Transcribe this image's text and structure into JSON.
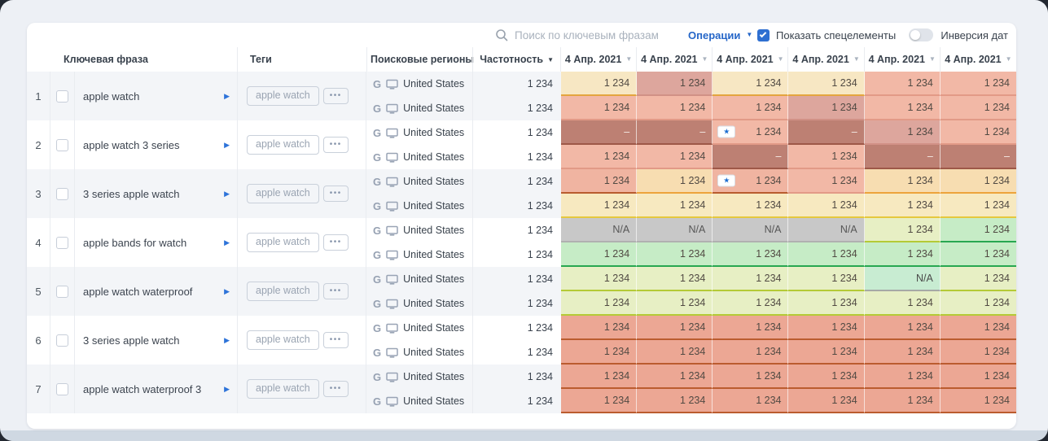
{
  "toolbar": {
    "search_placeholder": "Поиск по ключевым фразам",
    "operations": "Операции",
    "show_special": "Показать спецелементы",
    "show_special_checked": true,
    "invert_dates": "Инверсия дат",
    "invert_dates_on": false
  },
  "icons": {
    "caret_down": "▼",
    "sort_desc": "▼",
    "arrow_right": "▶",
    "star": "★",
    "dots": "•••",
    "google": "G"
  },
  "colors": {
    "accent_blue": "#2566c8",
    "row_stripe": "#f3f5f8",
    "palette": {
      "y": {
        "bg": "#f7e7c3",
        "border": "#e4a53e",
        "text": "#514a43"
      },
      "o": {
        "bg": "#f7ddb1",
        "border": "#eda43c",
        "text": "#514a43"
      },
      "yb": {
        "bg": "#f7e9c0",
        "border": "#e5c83e",
        "text": "#514a43"
      },
      "s": {
        "bg": "#f2b8a6",
        "border": "#e29a87",
        "text": "#514a43"
      },
      "m": {
        "bg": "#dda69d",
        "border": "#d19186",
        "text": "#514a43"
      },
      "d": {
        "bg": "#bd8073",
        "border": "#9e5848",
        "text": "#f7ece8"
      },
      "sr": {
        "bg": "#f0b4a1",
        "border": "#b95c2f",
        "text": "#514a43"
      },
      "r": {
        "bg": "#eca794",
        "border": "#bb5c2f",
        "text": "#514a43"
      },
      "g": {
        "bg": "#c8c8c8",
        "border": "#b0b0b0",
        "text": "#565656"
      },
      "lg": {
        "bg": "#e7efc4",
        "border": "#b4ca36",
        "text": "#514a43"
      },
      "gr": {
        "bg": "#c6ecc6",
        "border": "#28a751",
        "text": "#514a43"
      },
      "gn": {
        "bg": "#c8ecd2",
        "border": "#a6a9a6",
        "text": "#4a4a4a"
      }
    }
  },
  "table": {
    "headers": {
      "keyword": "Ключевая фраза",
      "tags": "Теги",
      "regions": "Поисковые регионы",
      "frequency": "Частотность"
    },
    "date_columns": [
      "4 Апр. 2021",
      "4 Апр. 2021",
      "4 Апр. 2021",
      "4 Апр. 2021",
      "4 Апр. 2021",
      "4 Апр. 2021"
    ],
    "rows": [
      {
        "num": "1",
        "keyword": "apple watch",
        "tag": "apple watch",
        "subrows": [
          {
            "engine": "G",
            "region": "United States",
            "frequency": "1 234",
            "cells": [
              {
                "v": "1 234",
                "k": "y"
              },
              {
                "v": "1 234",
                "k": "m"
              },
              {
                "v": "1 234",
                "k": "y"
              },
              {
                "v": "1 234",
                "k": "y"
              },
              {
                "v": "1 234",
                "k": "s"
              },
              {
                "v": "1 234",
                "k": "s"
              }
            ]
          },
          {
            "engine": "G",
            "region": "United States",
            "frequency": "1 234",
            "cells": [
              {
                "v": "1 234",
                "k": "s"
              },
              {
                "v": "1 234",
                "k": "s"
              },
              {
                "v": "1 234",
                "k": "s"
              },
              {
                "v": "1 234",
                "k": "m"
              },
              {
                "v": "1 234",
                "k": "s"
              },
              {
                "v": "1 234",
                "k": "s"
              }
            ]
          }
        ]
      },
      {
        "num": "2",
        "keyword": "apple watch 3 series",
        "tag": "apple watch",
        "subrows": [
          {
            "engine": "G",
            "region": "United States",
            "frequency": "1 234",
            "cells": [
              {
                "v": "–",
                "k": "d"
              },
              {
                "v": "–",
                "k": "d"
              },
              {
                "v": "1 234",
                "k": "s",
                "star": true
              },
              {
                "v": "–",
                "k": "d"
              },
              {
                "v": "1 234",
                "k": "m"
              },
              {
                "v": "1 234",
                "k": "s"
              }
            ]
          },
          {
            "engine": "G",
            "region": "United States",
            "frequency": "1 234",
            "cells": [
              {
                "v": "1 234",
                "k": "s"
              },
              {
                "v": "1 234",
                "k": "s"
              },
              {
                "v": "–",
                "k": "d"
              },
              {
                "v": "1 234",
                "k": "s"
              },
              {
                "v": "–",
                "k": "d"
              },
              {
                "v": "–",
                "k": "d"
              }
            ]
          }
        ]
      },
      {
        "num": "3",
        "keyword": "3 series apple watch",
        "tag": "apple watch",
        "subrows": [
          {
            "engine": "G",
            "region": "United States",
            "frequency": "1 234",
            "cells": [
              {
                "v": "1 234",
                "k": "sr"
              },
              {
                "v": "1 234",
                "k": "o"
              },
              {
                "v": "1 234",
                "k": "sr",
                "star": true
              },
              {
                "v": "1 234",
                "k": "s"
              },
              {
                "v": "1 234",
                "k": "o"
              },
              {
                "v": "1 234",
                "k": "o"
              }
            ]
          },
          {
            "engine": "G",
            "region": "United States",
            "frequency": "1 234",
            "cells": [
              {
                "v": "1 234",
                "k": "yb"
              },
              {
                "v": "1 234",
                "k": "yb"
              },
              {
                "v": "1 234",
                "k": "yb"
              },
              {
                "v": "1 234",
                "k": "yb"
              },
              {
                "v": "1 234",
                "k": "yb"
              },
              {
                "v": "1 234",
                "k": "yb"
              }
            ]
          }
        ]
      },
      {
        "num": "4",
        "keyword": "apple bands for watch",
        "tag": "apple watch",
        "subrows": [
          {
            "engine": "G",
            "region": "United States",
            "frequency": "1 234",
            "cells": [
              {
                "v": "N/A",
                "k": "g"
              },
              {
                "v": "N/A",
                "k": "g"
              },
              {
                "v": "N/A",
                "k": "g"
              },
              {
                "v": "N/A",
                "k": "g"
              },
              {
                "v": "1 234",
                "k": "lg"
              },
              {
                "v": "1 234",
                "k": "gr"
              }
            ]
          },
          {
            "engine": "G",
            "region": "United States",
            "frequency": "1 234",
            "cells": [
              {
                "v": "1 234",
                "k": "gr"
              },
              {
                "v": "1 234",
                "k": "gr"
              },
              {
                "v": "1 234",
                "k": "gr"
              },
              {
                "v": "1 234",
                "k": "gr"
              },
              {
                "v": "1 234",
                "k": "gr"
              },
              {
                "v": "1 234",
                "k": "gr"
              }
            ]
          }
        ]
      },
      {
        "num": "5",
        "keyword": "apple watch waterproof",
        "tag": "apple watch",
        "subrows": [
          {
            "engine": "G",
            "region": "United States",
            "frequency": "1 234",
            "cells": [
              {
                "v": "1 234",
                "k": "lg"
              },
              {
                "v": "1 234",
                "k": "lg"
              },
              {
                "v": "1 234",
                "k": "lg"
              },
              {
                "v": "1 234",
                "k": "lg"
              },
              {
                "v": "N/A",
                "k": "gn"
              },
              {
                "v": "1 234",
                "k": "lg"
              }
            ]
          },
          {
            "engine": "G",
            "region": "United States",
            "frequency": "1 234",
            "cells": [
              {
                "v": "1 234",
                "k": "lg"
              },
              {
                "v": "1 234",
                "k": "lg"
              },
              {
                "v": "1 234",
                "k": "lg"
              },
              {
                "v": "1 234",
                "k": "lg"
              },
              {
                "v": "1 234",
                "k": "lg"
              },
              {
                "v": "1 234",
                "k": "lg"
              }
            ]
          }
        ]
      },
      {
        "num": "6",
        "keyword": "3 series apple watch",
        "tag": "apple watch",
        "subrows": [
          {
            "engine": "G",
            "region": "United States",
            "frequency": "1 234",
            "cells": [
              {
                "v": "1 234",
                "k": "r"
              },
              {
                "v": "1 234",
                "k": "r"
              },
              {
                "v": "1 234",
                "k": "r"
              },
              {
                "v": "1 234",
                "k": "r"
              },
              {
                "v": "1 234",
                "k": "r"
              },
              {
                "v": "1 234",
                "k": "r"
              }
            ]
          },
          {
            "engine": "G",
            "region": "United States",
            "frequency": "1 234",
            "cells": [
              {
                "v": "1 234",
                "k": "r"
              },
              {
                "v": "1 234",
                "k": "r"
              },
              {
                "v": "1 234",
                "k": "r"
              },
              {
                "v": "1 234",
                "k": "r"
              },
              {
                "v": "1 234",
                "k": "r"
              },
              {
                "v": "1 234",
                "k": "r"
              }
            ]
          }
        ]
      },
      {
        "num": "7",
        "keyword": "apple watch waterproof 3",
        "tag": "apple watch",
        "subrows": [
          {
            "engine": "G",
            "region": "United States",
            "frequency": "1 234",
            "cells": [
              {
                "v": "1 234",
                "k": "r"
              },
              {
                "v": "1 234",
                "k": "r"
              },
              {
                "v": "1 234",
                "k": "r"
              },
              {
                "v": "1 234",
                "k": "r"
              },
              {
                "v": "1 234",
                "k": "r"
              },
              {
                "v": "1 234",
                "k": "r"
              }
            ]
          },
          {
            "engine": "G",
            "region": "United States",
            "frequency": "1 234",
            "cells": [
              {
                "v": "1 234",
                "k": "r"
              },
              {
                "v": "1 234",
                "k": "r"
              },
              {
                "v": "1 234",
                "k": "r"
              },
              {
                "v": "1 234",
                "k": "r"
              },
              {
                "v": "1 234",
                "k": "r"
              },
              {
                "v": "1 234",
                "k": "r"
              }
            ]
          }
        ]
      }
    ]
  }
}
